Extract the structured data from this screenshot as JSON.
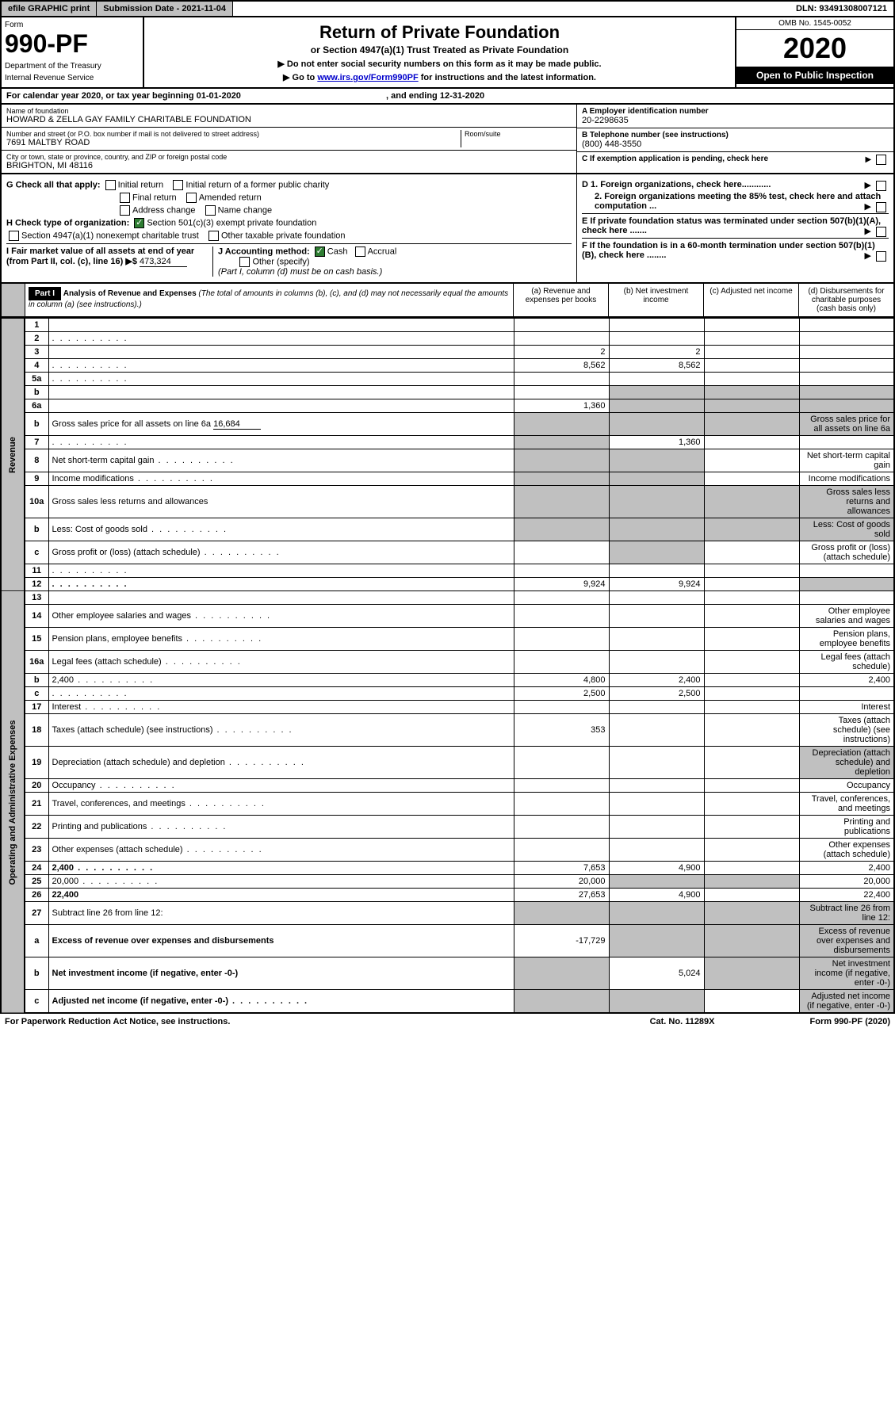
{
  "topbar": {
    "efile": "efile GRAPHIC print",
    "submission": "Submission Date - 2021-11-04",
    "dln": "DLN: 93491308007121"
  },
  "header": {
    "form_label": "Form",
    "form_no": "990-PF",
    "dept1": "Department of the Treasury",
    "dept2": "Internal Revenue Service",
    "title": "Return of Private Foundation",
    "subtitle": "or Section 4947(a)(1) Trust Treated as Private Foundation",
    "instr1": "▶ Do not enter social security numbers on this form as it may be made public.",
    "instr2_pre": "▶ Go to ",
    "instr2_link": "www.irs.gov/Form990PF",
    "instr2_post": " for instructions and the latest information.",
    "omb": "OMB No. 1545-0052",
    "year": "2020",
    "open": "Open to Public Inspection"
  },
  "calyear": {
    "text_pre": "For calendar year 2020, or tax year beginning ",
    "begin": "01-01-2020",
    "text_mid": " , and ending ",
    "end": "12-31-2020"
  },
  "entity": {
    "name_label": "Name of foundation",
    "name": "HOWARD & ZELLA GAY FAMILY CHARITABLE FOUNDATION",
    "addr_label": "Number and street (or P.O. box number if mail is not delivered to street address)",
    "room_label": "Room/suite",
    "addr": "7691 MALTBY ROAD",
    "city_label": "City or town, state or province, country, and ZIP or foreign postal code",
    "city": "BRIGHTON, MI  48116",
    "ein_label": "A Employer identification number",
    "ein": "20-2298635",
    "phone_label": "B Telephone number (see instructions)",
    "phone": "(800) 448-3550",
    "c_label": "C If exemption application is pending, check here",
    "d1": "D 1. Foreign organizations, check here............",
    "d2": "2. Foreign organizations meeting the 85% test, check here and attach computation ...",
    "e_label": "E  If private foundation status was terminated under section 507(b)(1)(A), check here .......",
    "f_label": "F  If the foundation is in a 60-month termination under section 507(b)(1)(B), check here ........"
  },
  "checks": {
    "g_label": "G Check all that apply:",
    "initial": "Initial return",
    "initial_former": "Initial return of a former public charity",
    "final": "Final return",
    "amended": "Amended return",
    "addr_change": "Address change",
    "name_change": "Name change",
    "h_label": "H Check type of organization:",
    "sec501": "Section 501(c)(3) exempt private foundation",
    "sec4947": "Section 4947(a)(1) nonexempt charitable trust",
    "other_tax": "Other taxable private foundation",
    "i_label": "I Fair market value of all assets at end of year (from Part II, col. (c), line 16) ▶$",
    "i_val": "473,324",
    "j_label": "J Accounting method:",
    "cash": "Cash",
    "accrual": "Accrual",
    "other_spec": "Other (specify)",
    "j_note": "(Part I, column (d) must be on cash basis.)"
  },
  "part1": {
    "label": "Part I",
    "title": "Analysis of Revenue and Expenses",
    "note": "(The total of amounts in columns (b), (c), and (d) may not necessarily equal the amounts in column (a) (see instructions).)",
    "col_a": "(a)   Revenue and expenses per books",
    "col_b": "(b)  Net investment income",
    "col_c": "(c)  Adjusted net income",
    "col_d": "(d)  Disbursements for charitable purposes (cash basis only)",
    "vlabel_rev": "Revenue",
    "vlabel_exp": "Operating and Administrative Expenses"
  },
  "rows": [
    {
      "n": "1",
      "d": "",
      "a": "",
      "b": "",
      "c": ""
    },
    {
      "n": "2",
      "d": "",
      "dots": true,
      "a": "",
      "b": "",
      "c": ""
    },
    {
      "n": "3",
      "d": "",
      "a": "2",
      "b": "2",
      "c": ""
    },
    {
      "n": "4",
      "d": "",
      "dots": true,
      "a": "8,562",
      "b": "8,562",
      "c": ""
    },
    {
      "n": "5a",
      "d": "",
      "dots": true,
      "a": "",
      "b": "",
      "c": ""
    },
    {
      "n": "b",
      "d": "",
      "a": "",
      "b": "",
      "c": "",
      "shade_bcd": true
    },
    {
      "n": "6a",
      "d": "",
      "a": "1,360",
      "b": "",
      "c": "",
      "shade_bcd": true
    },
    {
      "n": "b",
      "d": "Gross sales price for all assets on line 6a",
      "val": "16,684",
      "shade_all": true
    },
    {
      "n": "7",
      "d": "",
      "dots": true,
      "a": "",
      "b": "1,360",
      "c": "",
      "shade_a": true
    },
    {
      "n": "8",
      "d": "Net short-term capital gain",
      "dots": true,
      "shade_ab": true
    },
    {
      "n": "9",
      "d": "Income modifications",
      "dots": true,
      "shade_ab": true
    },
    {
      "n": "10a",
      "d": "Gross sales less returns and allowances",
      "shade_all": true
    },
    {
      "n": "b",
      "d": "Less: Cost of goods sold",
      "dots": true,
      "shade_all": true
    },
    {
      "n": "c",
      "d": "Gross profit or (loss) (attach schedule)",
      "dots": true,
      "a": "",
      "b": "",
      "shade_b": true
    },
    {
      "n": "11",
      "d": "",
      "dots": true,
      "a": "",
      "b": "",
      "c": ""
    },
    {
      "n": "12",
      "d": "",
      "dots": true,
      "bold": true,
      "a": "9,924",
      "b": "9,924",
      "c": "",
      "shade_d": true
    }
  ],
  "exp_rows": [
    {
      "n": "13",
      "d": "",
      "a": "",
      "b": "",
      "c": ""
    },
    {
      "n": "14",
      "d": "Other employee salaries and wages",
      "dots": true
    },
    {
      "n": "15",
      "d": "Pension plans, employee benefits",
      "dots": true
    },
    {
      "n": "16a",
      "d": "Legal fees (attach schedule)",
      "dots": true
    },
    {
      "n": "b",
      "d": "2,400",
      "dots": true,
      "a": "4,800",
      "b": "2,400",
      "c": ""
    },
    {
      "n": "c",
      "d": "",
      "dots": true,
      "a": "2,500",
      "b": "2,500",
      "c": ""
    },
    {
      "n": "17",
      "d": "Interest",
      "dots": true
    },
    {
      "n": "18",
      "d": "Taxes (attach schedule) (see instructions)",
      "dots": true,
      "a": "353"
    },
    {
      "n": "19",
      "d": "Depreciation (attach schedule) and depletion",
      "dots": true,
      "shade_d": true
    },
    {
      "n": "20",
      "d": "Occupancy",
      "dots": true
    },
    {
      "n": "21",
      "d": "Travel, conferences, and meetings",
      "dots": true
    },
    {
      "n": "22",
      "d": "Printing and publications",
      "dots": true
    },
    {
      "n": "23",
      "d": "Other expenses (attach schedule)",
      "dots": true
    },
    {
      "n": "24",
      "d": "2,400",
      "dots": true,
      "bold": true,
      "a": "7,653",
      "b": "4,900",
      "c": ""
    },
    {
      "n": "25",
      "d": "20,000",
      "dots": true,
      "a": "20,000",
      "shade_bc": true
    },
    {
      "n": "26",
      "d": "22,400",
      "bold": true,
      "a": "27,653",
      "b": "4,900",
      "c": ""
    },
    {
      "n": "27",
      "d": "Subtract line 26 from line 12:",
      "shade_all": true
    },
    {
      "n": "a",
      "d": "Excess of revenue over expenses and disbursements",
      "bold": true,
      "a": "-17,729",
      "shade_bcd": true
    },
    {
      "n": "b",
      "d": "Net investment income (if negative, enter -0-)",
      "bold": true,
      "shade_a": true,
      "b": "5,024",
      "shade_cd": true
    },
    {
      "n": "c",
      "d": "Adjusted net income (if negative, enter -0-)",
      "dots": true,
      "bold": true,
      "shade_ab": true,
      "c": "",
      "shade_d": true
    }
  ],
  "footer": {
    "left": "For Paperwork Reduction Act Notice, see instructions.",
    "mid": "Cat. No. 11289X",
    "right": "Form 990-PF (2020)"
  }
}
